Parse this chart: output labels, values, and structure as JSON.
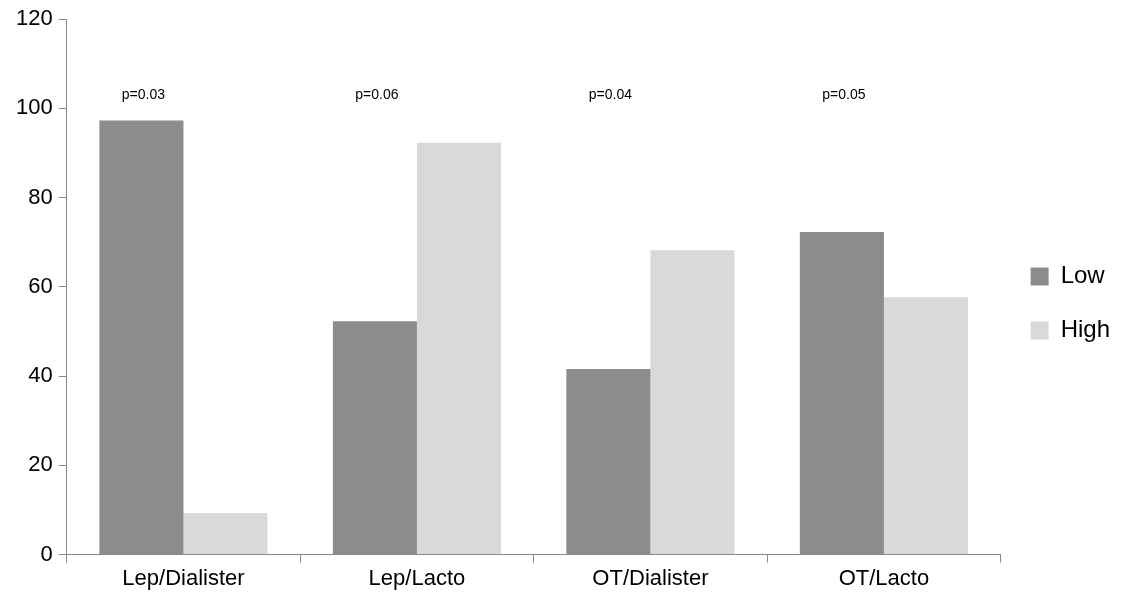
{
  "chart_data": {
    "type": "bar",
    "categories": [
      "Lep/Dialister",
      "Lep/Lacto",
      "OT/Dialister",
      "OT/Lacto"
    ],
    "series": [
      {
        "name": "Low",
        "color": "#8c8c8c",
        "values": [
          97.3,
          52.3,
          41.6,
          72.3
        ]
      },
      {
        "name": "High",
        "color": "#d9d9d9",
        "values": [
          9.3,
          92.3,
          68.2,
          57.7
        ]
      }
    ],
    "ylim": [
      0,
      120
    ],
    "yticks": [
      0,
      20,
      40,
      60,
      80,
      100,
      120
    ],
    "grid": false,
    "legend": "right",
    "annotations": [
      "p=0.03",
      "p=0.06",
      "p=0.04",
      "p=0.05"
    ]
  }
}
